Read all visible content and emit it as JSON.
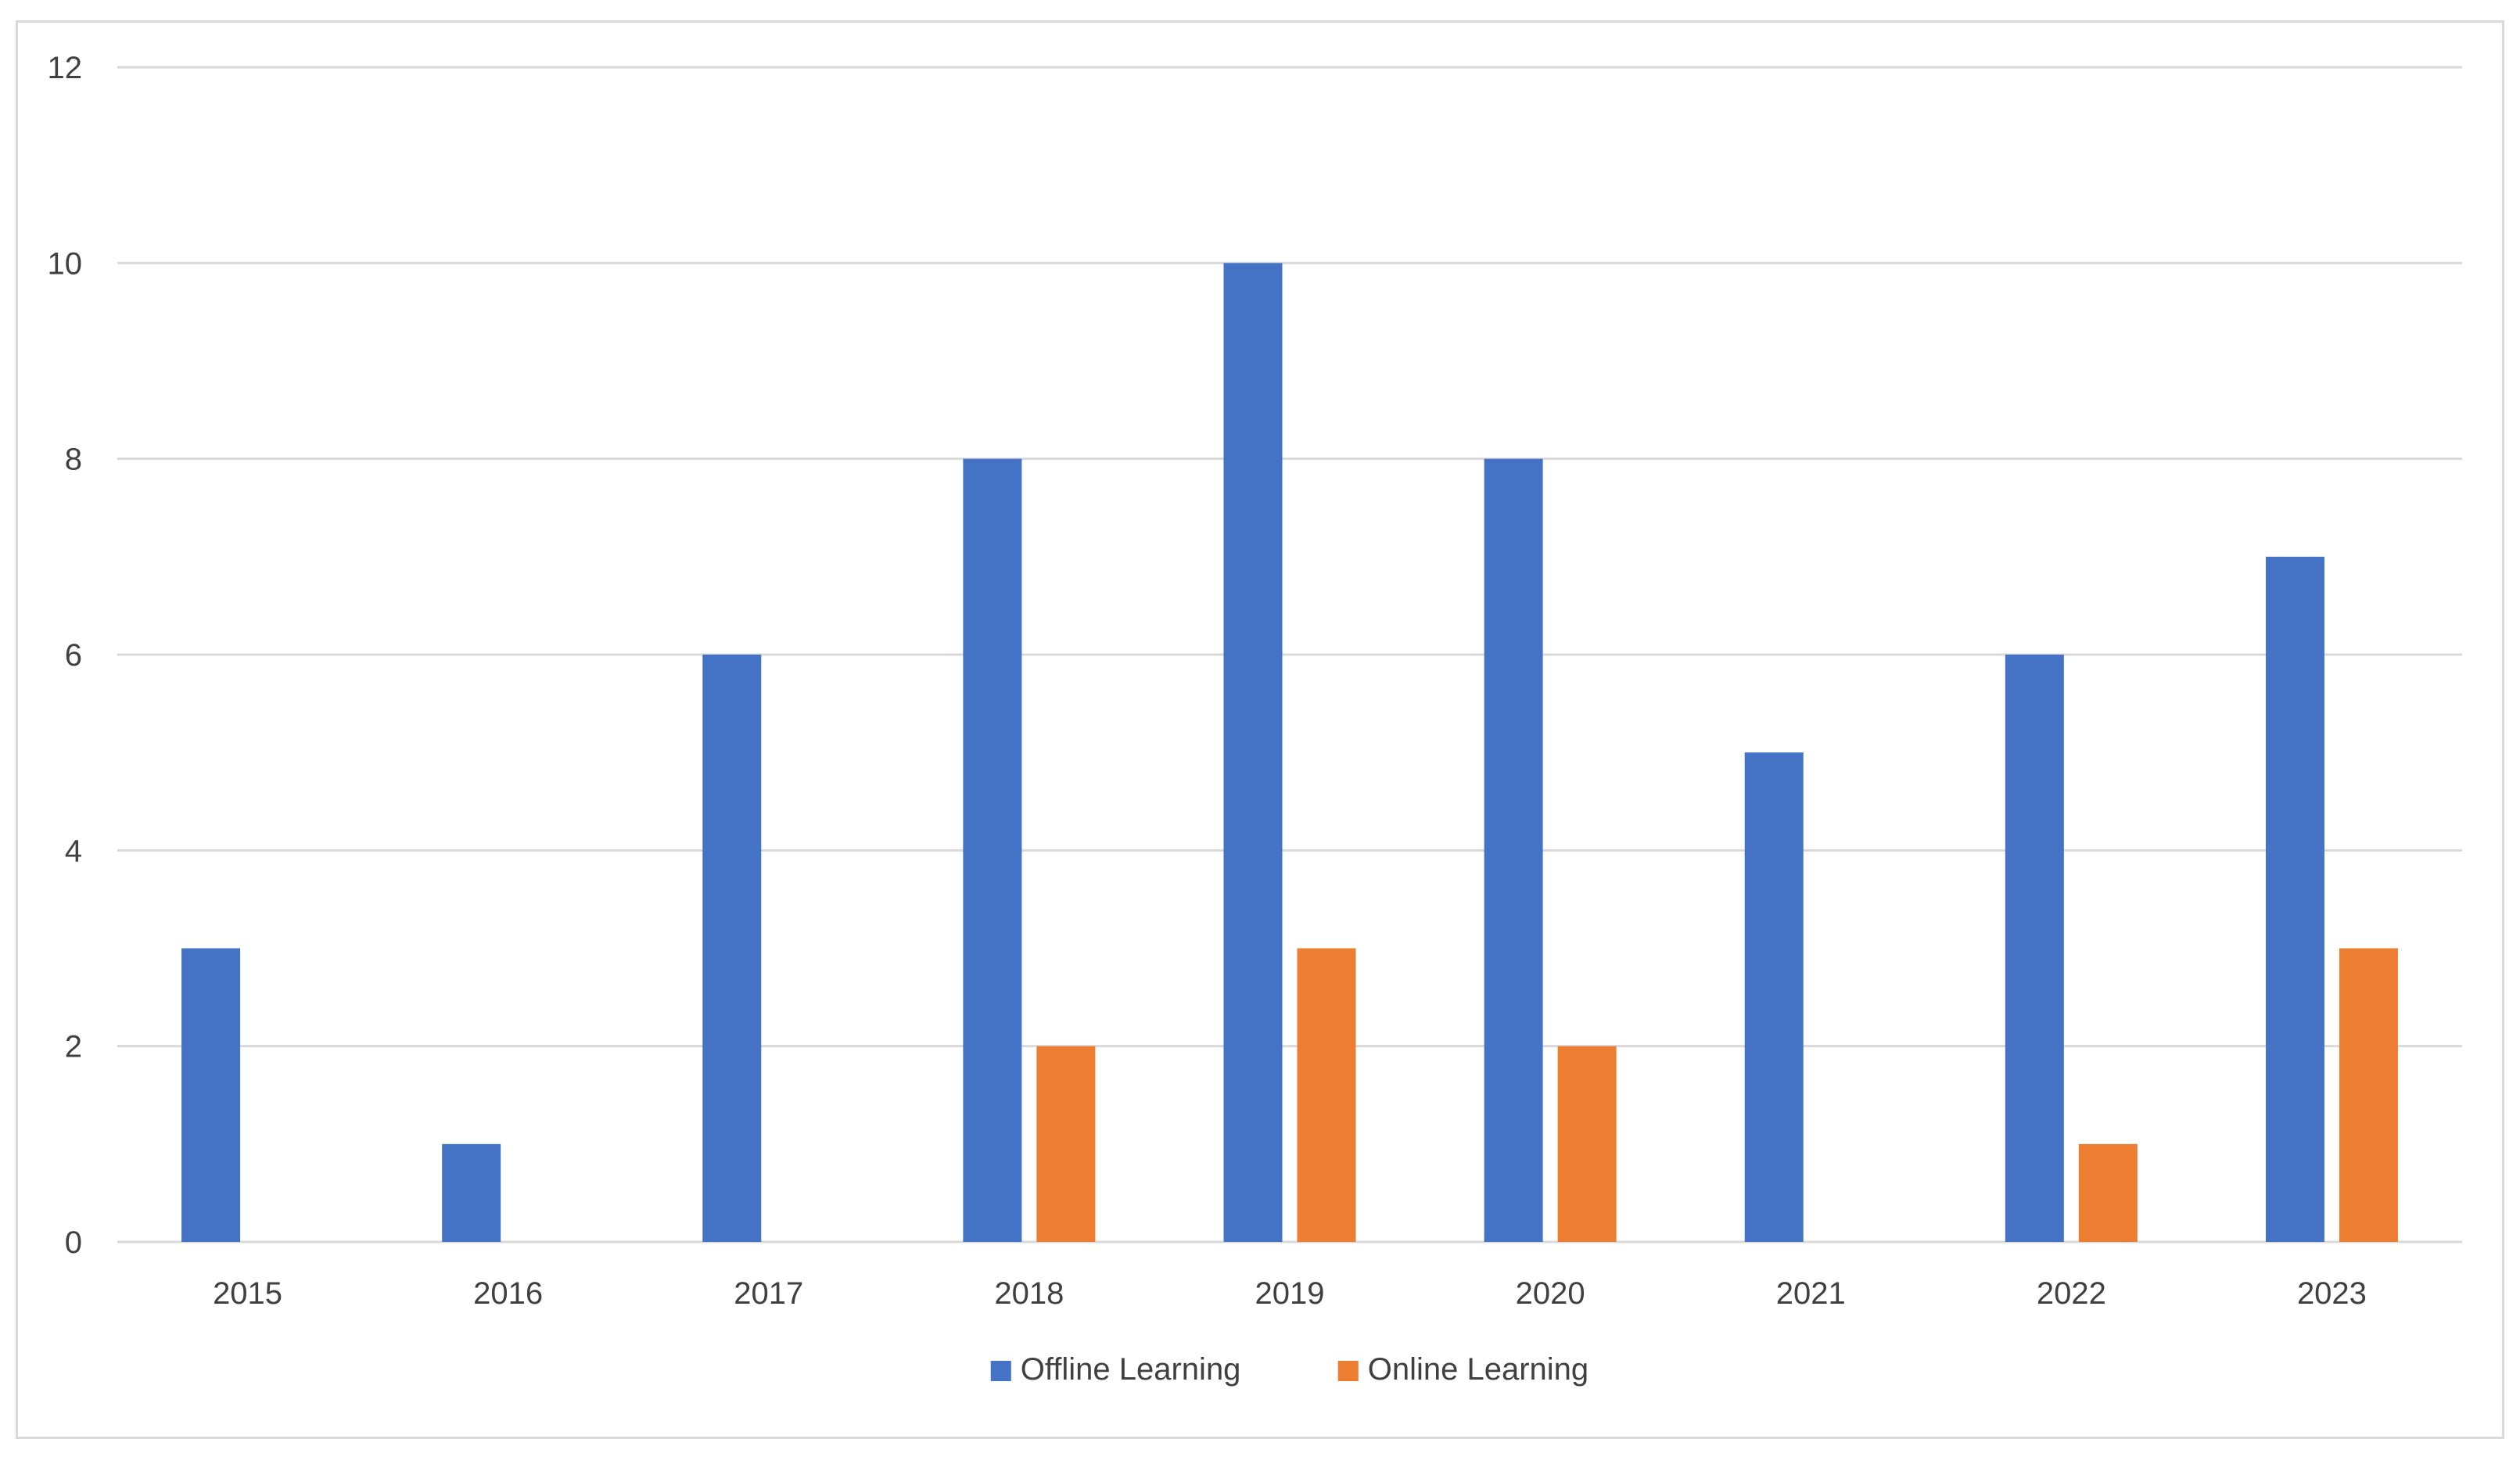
{
  "chart_data": {
    "type": "bar",
    "title": "",
    "xlabel": "",
    "ylabel": "",
    "categories": [
      "2015",
      "2016",
      "2017",
      "2018",
      "2019",
      "2020",
      "2021",
      "2022",
      "2023"
    ],
    "series": [
      {
        "name": "Offline Learning",
        "color": "#4472c4",
        "values": [
          3,
          1,
          6,
          8,
          10,
          8,
          5,
          6,
          7
        ]
      },
      {
        "name": "Online Learning",
        "color": "#ed7d31",
        "values": [
          0,
          0,
          0,
          2,
          3,
          2,
          0,
          1,
          3
        ]
      }
    ],
    "ylim": [
      0,
      12
    ],
    "yticks": [
      0,
      2,
      4,
      6,
      8,
      10,
      12
    ],
    "grid": true,
    "legend_position": "bottom-center"
  }
}
